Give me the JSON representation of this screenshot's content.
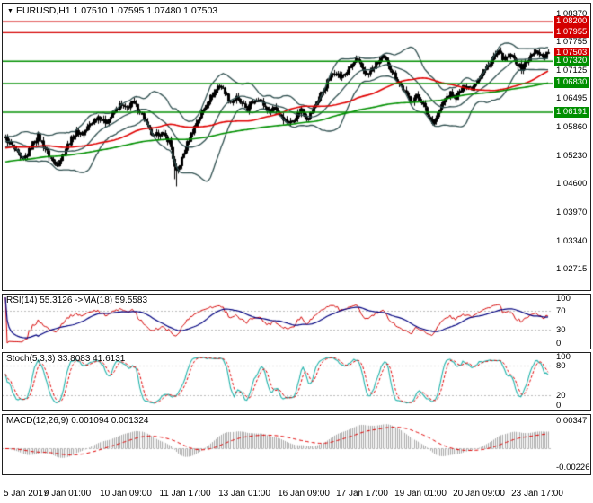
{
  "header": {
    "marker": "▼",
    "symbol_tf": "EURUSD,H1",
    "ohlc": "1.07510 1.07595 1.07480 1.07503"
  },
  "price_scale": {
    "ticks": [
      "1.08370",
      "1.07755",
      "1.07125",
      "1.06495",
      "1.05860",
      "1.05230",
      "1.04600",
      "1.03970",
      "1.03340",
      "1.02715"
    ],
    "badges": [
      {
        "text": "1.08200",
        "price": 1.082,
        "color": "#d40000"
      },
      {
        "text": "1.07955",
        "price": 1.07955,
        "color": "#d40000"
      },
      {
        "text": "1.07503",
        "price": 1.07503,
        "color": "#d40000"
      },
      {
        "text": "1.07320",
        "price": 1.0732,
        "color": "#008f00"
      },
      {
        "text": "1.06830",
        "price": 1.0683,
        "color": "#008f00"
      },
      {
        "text": "1.06191",
        "price": 1.06191,
        "color": "#008f00"
      }
    ]
  },
  "time_axis": {
    "labels": [
      "5 Jan 2017",
      "9 Jan 01:00",
      "10 Jan 09:00",
      "11 Jan 17:00",
      "13 Jan 01:00",
      "16 Jan 09:00",
      "17 Jan 17:00",
      "19 Jan 01:00",
      "20 Jan 09:00",
      "23 Jan 17:00"
    ]
  },
  "panels": {
    "rsi": {
      "title": "RSI(14) 55.3126  ->MA(18) 59.5583"
    },
    "stoch": {
      "title": "Stoch(5,3,3) 33.8083 41.6131"
    },
    "macd": {
      "title": "MACD(12,26,9) 0.001094 0.001324"
    }
  },
  "colors": {
    "background": "#ffffff",
    "border": "#202020",
    "candle": "#000000",
    "bands": "#2f4f4f",
    "red_ma": "#e00000",
    "green_ma": "#009000",
    "red_line": "#d40000",
    "green_line": "#008f00",
    "rsi_line": "#d40000",
    "rsi_ma": "#00007f",
    "stoch_main": "#20b2aa",
    "stoch_signal": "#e00000",
    "macd_hist": "#a8a8a8",
    "macd_signal": "#e00000",
    "grid_dotted": "#bbbbbb"
  },
  "chart_data": {
    "type": "candlestick",
    "symbol": "EURUSD",
    "timeframe": "H1",
    "last_bar": {
      "open": 1.0751,
      "high": 1.07595,
      "low": 1.0748,
      "close": 1.07503
    },
    "x_labels": [
      "5 Jan 2017",
      "9 Jan 01:00",
      "10 Jan 09:00",
      "11 Jan 17:00",
      "13 Jan 01:00",
      "16 Jan 09:00",
      "17 Jan 17:00",
      "19 Jan 01:00",
      "20 Jan 09:00",
      "23 Jan 17:00"
    ],
    "price_axis_ticks": [
      1.0837,
      1.07755,
      1.07125,
      1.06495,
      1.0586,
      1.0523,
      1.046,
      1.0397,
      1.0334,
      1.02715
    ],
    "levels": {
      "resistance": [
        1.082,
        1.07955
      ],
      "support": [
        1.0732,
        1.0683,
        1.06191
      ],
      "current_price": 1.07503
    },
    "bar_count": 300,
    "spike_index": 31,
    "spike_low": 1.0454,
    "close_path": [
      1.056,
      1.0545,
      1.053,
      1.051,
      1.0525,
      1.055,
      1.0565,
      1.0545,
      1.052,
      1.05,
      1.0515,
      1.054,
      1.056,
      1.0575,
      1.057,
      1.0585,
      1.06,
      1.061,
      1.0595,
      1.0605,
      1.062,
      1.0635,
      1.0625,
      1.064,
      1.063,
      1.061,
      1.058,
      1.056,
      1.0575,
      1.0565,
      1.055,
      1.048,
      1.051,
      1.0545,
      1.0575,
      1.06,
      1.062,
      1.0645,
      1.066,
      1.068,
      1.0665,
      1.064,
      1.065,
      1.0635,
      1.0625,
      1.064,
      1.065,
      1.0635,
      1.062,
      1.063,
      1.0615,
      1.06,
      1.0595,
      1.061,
      1.0625,
      1.0605,
      1.062,
      1.0645,
      1.067,
      1.0695,
      1.071,
      1.0695,
      1.0705,
      1.072,
      1.0735,
      1.0715,
      1.07,
      1.0715,
      1.073,
      1.074,
      1.072,
      1.07,
      1.068,
      1.066,
      1.0645,
      1.0655,
      1.064,
      1.061,
      1.0595,
      1.062,
      1.0645,
      1.066,
      1.065,
      1.0665,
      1.068,
      1.067,
      1.069,
      1.0705,
      1.072,
      1.074,
      1.075,
      1.0735,
      1.0745,
      1.073,
      1.0715,
      1.073,
      1.0745,
      1.0755,
      1.074,
      1.075
    ],
    "indicators": {
      "rsi": {
        "name": "RSI",
        "period": 14,
        "value": 55.3126,
        "ma_period": 18,
        "ma_value": 59.5583,
        "scale": [
          "100",
          "70",
          "30",
          "0"
        ],
        "levels": [
          70,
          30
        ]
      },
      "stoch": {
        "name": "Stochastic",
        "params": [
          5,
          3,
          3
        ],
        "main_value": 33.8083,
        "signal_value": 41.6131,
        "scale": [
          "100",
          "80",
          "20",
          "0"
        ],
        "levels": [
          80,
          20
        ]
      },
      "macd": {
        "name": "MACD",
        "params": [
          12,
          26,
          9
        ],
        "macd_value": 0.001094,
        "signal_value": 0.001324,
        "scale": [
          "0.00347",
          "-0.00226"
        ]
      }
    }
  }
}
